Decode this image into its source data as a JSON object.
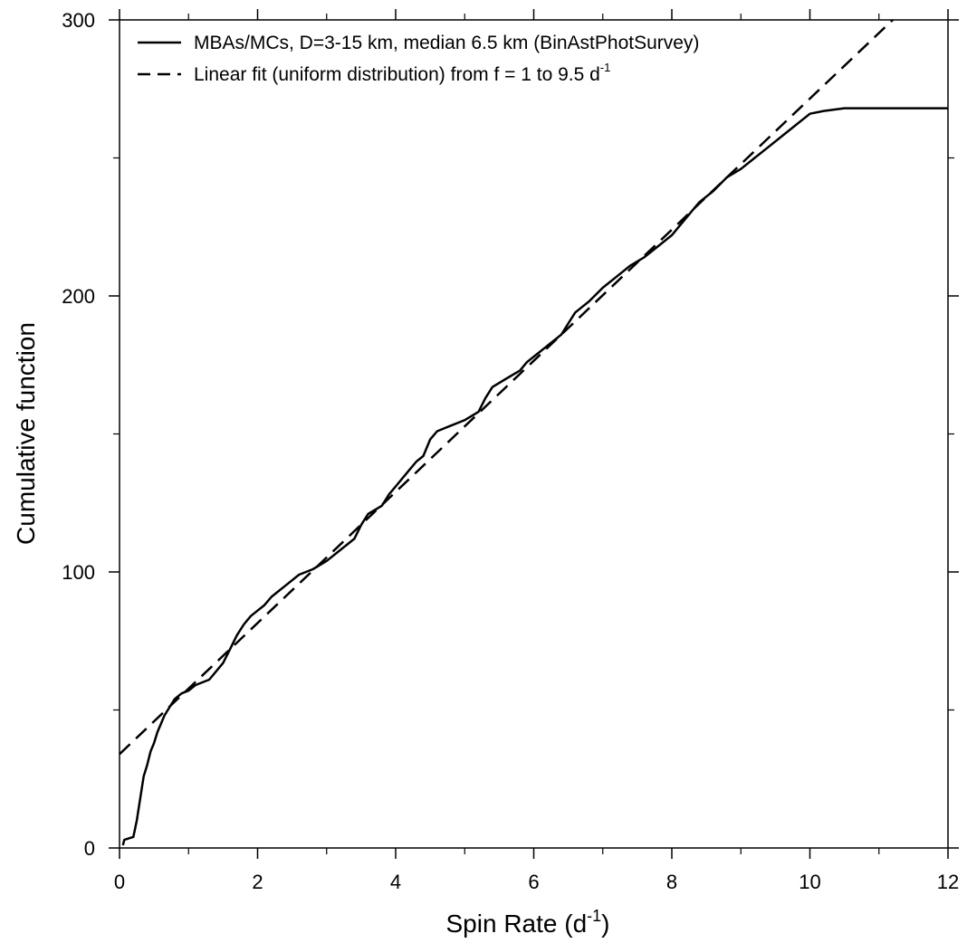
{
  "chart_data": {
    "type": "line",
    "xlabel": "Spin Rate (d",
    "xlabel_sup": "-1",
    "xlabel_close": ")",
    "ylabel": "Cumulative function",
    "xlim": [
      0,
      12
    ],
    "ylim": [
      0,
      300
    ],
    "x_ticks": [
      0,
      2,
      4,
      6,
      8,
      10,
      12
    ],
    "x_tick_labels": [
      "0",
      "2",
      "4",
      "6",
      "8",
      "10",
      "12"
    ],
    "x_minor_ticks": [
      1,
      3,
      5,
      7,
      9,
      11
    ],
    "y_ticks": [
      0,
      100,
      200,
      300
    ],
    "y_tick_labels": [
      "0",
      "100",
      "200",
      "300"
    ],
    "y_minor_ticks": [
      50,
      150,
      250
    ],
    "grid": false,
    "legend_position": "top-left",
    "series": [
      {
        "name": "MBAs/MCs, D=3-15 km, median 6.5 km (BinAstPhotSurvey)",
        "style": "solid",
        "color": "#000000",
        "x": [
          0.05,
          0.07,
          0.2,
          0.25,
          0.3,
          0.35,
          0.4,
          0.45,
          0.5,
          0.55,
          0.6,
          0.65,
          0.7,
          0.75,
          0.8,
          0.9,
          1.0,
          1.1,
          1.3,
          1.5,
          1.6,
          1.7,
          1.8,
          1.9,
          2.0,
          2.1,
          2.2,
          2.3,
          2.4,
          2.5,
          2.6,
          2.8,
          3.0,
          3.2,
          3.4,
          3.5,
          3.6,
          3.8,
          3.9,
          4.0,
          4.1,
          4.2,
          4.3,
          4.4,
          4.5,
          4.6,
          4.7,
          4.8,
          5.0,
          5.2,
          5.3,
          5.4,
          5.6,
          5.8,
          5.9,
          6.0,
          6.2,
          6.4,
          6.5,
          6.6,
          6.7,
          6.8,
          7.0,
          7.2,
          7.4,
          7.6,
          7.8,
          8.0,
          8.2,
          8.4,
          8.6,
          8.8,
          9.0,
          9.2,
          9.4,
          9.6,
          9.8,
          10.0,
          10.2,
          10.5,
          11.0,
          12.0
        ],
        "y": [
          1,
          3,
          4,
          10,
          18,
          26,
          30,
          35,
          38,
          42,
          45,
          48,
          50,
          52,
          54,
          56,
          57,
          59,
          61,
          67,
          72,
          77,
          81,
          84,
          86,
          88,
          91,
          93,
          95,
          97,
          99,
          101,
          104,
          108,
          112,
          117,
          121,
          124,
          128,
          131,
          134,
          137,
          140,
          142,
          148,
          151,
          152,
          153,
          155,
          158,
          163,
          167,
          170,
          173,
          176,
          178,
          182,
          186,
          190,
          194,
          196,
          198,
          203,
          207,
          211,
          214,
          218,
          222,
          228,
          234,
          238,
          243,
          246,
          250,
          254,
          258,
          262,
          266,
          267,
          268,
          268,
          268
        ]
      },
      {
        "name": "Linear fit (uniform distribution) from f = 1 to 9.5 d",
        "name_sup": "-1",
        "style": "dashed",
        "color": "#000000",
        "x": [
          0,
          11.2
        ],
        "y": [
          34,
          300
        ]
      }
    ]
  }
}
